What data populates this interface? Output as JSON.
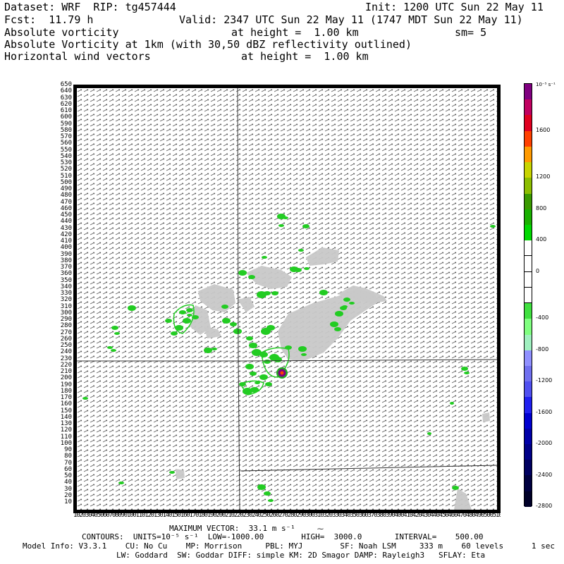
{
  "header": {
    "dataset": "Dataset: WRF  RIP: tg457444",
    "init": "Init: 1200 UTC Sun 22 May 11",
    "fcst": "Fcst:  11.79 h",
    "valid": "Valid: 2347 UTC Sun 22 May 11 (1747 MDT Sun 22 May 11)",
    "field1": "Absolute vorticity",
    "field1_height": "at height =  1.00 km",
    "smoothing": "sm= 5",
    "field2": "Absolute Vorticity at 1km (with 30,50 dBZ reflectivity outlined)",
    "field3": "Horizontal wind vectors",
    "field3_height": "at height =  1.00 km"
  },
  "axis": {
    "y_ticks": [
      "650",
      "640",
      "630",
      "620",
      "610",
      "600",
      "590",
      "580",
      "570",
      "560",
      "550",
      "540",
      "530",
      "520",
      "510",
      "500",
      "490",
      "480",
      "470",
      "460",
      "450",
      "440",
      "430",
      "420",
      "410",
      "400",
      "390",
      "380",
      "370",
      "360",
      "350",
      "340",
      "330",
      "320",
      "310",
      "300",
      "290",
      "280",
      "270",
      "260",
      "250",
      "240",
      "230",
      "220",
      "210",
      "200",
      "190",
      "180",
      "170",
      "160",
      "150",
      "140",
      "130",
      "120",
      "110",
      "100",
      "90",
      "80",
      "70",
      "60",
      "50",
      "40",
      "30",
      "20",
      "10"
    ],
    "x_ticks_text": "1020304050607080901001101201301401501601701801902002102202302402502602702802903003103203303403503603703803904004104204304404504604704804905005105205305405505605705805906006106206306406506606706806907007107207307407507607707807908008108208308408508608708808909009109209309409509609709809901000"
  },
  "colorbar": {
    "unit": "10⁻⁵ s⁻¹",
    "levels": [
      {
        "color": "#800080",
        "label": ""
      },
      {
        "color": "#c00060",
        "label": ""
      },
      {
        "color": "#e00020",
        "label": "1600"
      },
      {
        "color": "#ff4000",
        "label": ""
      },
      {
        "color": "#ff9a00",
        "label": ""
      },
      {
        "color": "#c8d400",
        "label": "1200"
      },
      {
        "color": "#8cbe00",
        "label": ""
      },
      {
        "color": "#3a9a00",
        "label": "800"
      },
      {
        "color": "#19b000",
        "label": ""
      },
      {
        "color": "#00d800",
        "label": "400"
      },
      {
        "color": "#ffffff",
        "label": ""
      },
      {
        "color": "#ffffff",
        "label": "0"
      },
      {
        "color": "#ffffff",
        "label": ""
      },
      {
        "color": "#ffffff",
        "label": ""
      },
      {
        "color": "#40e040",
        "label": "-400"
      },
      {
        "color": "#80ff80",
        "label": ""
      },
      {
        "color": "#a0f0c0",
        "label": "-800"
      },
      {
        "color": "#9090ff",
        "label": ""
      },
      {
        "color": "#7070f0",
        "label": "-1200"
      },
      {
        "color": "#5050f0",
        "label": ""
      },
      {
        "color": "#2020f0",
        "label": "-1600"
      },
      {
        "color": "#0000d0",
        "label": ""
      },
      {
        "color": "#0000a8",
        "label": "-2000"
      },
      {
        "color": "#000088",
        "label": ""
      },
      {
        "color": "#000060",
        "label": "-2400"
      },
      {
        "color": "#000040",
        "label": ""
      },
      {
        "color": "#000028",
        "label": "-2800"
      }
    ]
  },
  "footer": {
    "max_vector": "MAXIMUM VECTOR:  33.1 m s⁻¹",
    "contours": "CONTOURS:  UNITS=10⁻⁵ s⁻¹  LOW=-1000.00        HIGH=  3000.0       INTERVAL=    500.00",
    "model_info": "Model Info: V3.3.1    CU: No Cu    MP: Morrison     PBL: MYJ        SF: Noah LSM     333 m    60 levels      1 sec",
    "model_info2": "LW: Goddard  SW: Goddar DIFF: simple KM: 2D Smagor DAMP: Rayleigh3   SFLAY: Eta"
  },
  "map": {
    "reflectivity_color": "#c8c8c8",
    "vorticity_color": "#22cc22",
    "peak_color": "#800080"
  }
}
